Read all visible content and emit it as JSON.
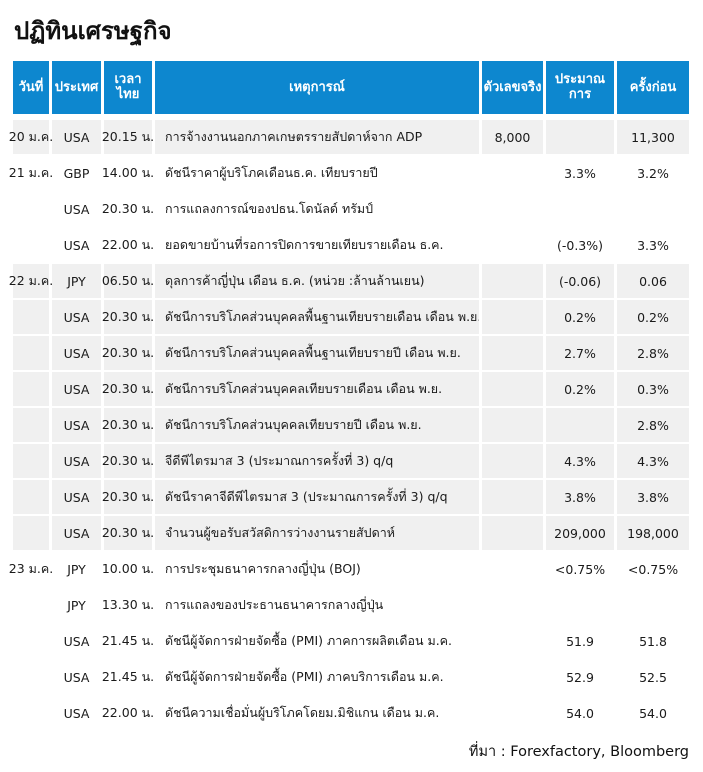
{
  "page_title": "ปฏิทินเศรษฐกิจ",
  "source_note": "ที่มา : Forexfactory, Bloomberg",
  "colors": {
    "header_bg": "#0d87cf",
    "header_text": "#ffffff",
    "row_alt_bg": "#f0f0f0",
    "row_bg": "#ffffff",
    "text": "#1a1a1a"
  },
  "table": {
    "columns": [
      "วันที่",
      "ประเทศ",
      "เวลาไทย",
      "เหตุการณ์",
      "ตัวเลขจริง",
      "ประมาณการ",
      "ครั้งก่อน"
    ],
    "rows": [
      {
        "date": "20 ม.ค.",
        "country": "USA",
        "time": "20.15 น.",
        "event": "การจ้างงานนอกภาคเกษตรรายสัปดาห์จาก ADP",
        "actual": "8,000",
        "estimate": "",
        "previous": "11,300",
        "shaded": true
      },
      {
        "date": "21 ม.ค.",
        "country": "GBP",
        "time": "14.00 น.",
        "event": "ดัชนีราคาผู้บริโภคเดือนธ.ค. เทียบรายปี",
        "actual": "",
        "estimate": "3.3%",
        "previous": "3.2%",
        "shaded": false
      },
      {
        "date": "",
        "country": "USA",
        "time": "20.30 น.",
        "event": "การแถลงการณ์ของปธน.โดนัลด์ ทรัมป์",
        "actual": "",
        "estimate": "",
        "previous": "",
        "shaded": false
      },
      {
        "date": "",
        "country": "USA",
        "time": "22.00 น.",
        "event": "ยอดขายบ้านที่รอการปิดการขายเทียบรายเดือน ธ.ค.",
        "actual": "",
        "estimate": "(-0.3%)",
        "previous": "3.3%",
        "shaded": false
      },
      {
        "date": "22 ม.ค.",
        "country": "JPY",
        "time": "06.50 น.",
        "event": "ดุลการค้าญี่ปุ่น เดือน ธ.ค. (หน่วย :ล้านล้านเยน)",
        "actual": "",
        "estimate": "(-0.06)",
        "previous": "0.06",
        "shaded": true
      },
      {
        "date": "",
        "country": "USA",
        "time": "20.30 น.",
        "event": "ดัชนีการบริโภคส่วนบุคคลพื้นฐานเทียบรายเดือน เดือน พ.ย.",
        "actual": "",
        "estimate": "0.2%",
        "previous": "0.2%",
        "shaded": true
      },
      {
        "date": "",
        "country": "USA",
        "time": "20.30 น.",
        "event": "ดัชนีการบริโภคส่วนบุคคลพื้นฐานเทียบรายปี เดือน พ.ย.",
        "actual": "",
        "estimate": "2.7%",
        "previous": "2.8%",
        "shaded": true
      },
      {
        "date": "",
        "country": "USA",
        "time": "20.30 น.",
        "event": "ดัชนีการบริโภคส่วนบุคคลเทียบรายเดือน เดือน พ.ย.",
        "actual": "",
        "estimate": "0.2%",
        "previous": "0.3%",
        "shaded": true
      },
      {
        "date": "",
        "country": "USA",
        "time": "20.30 น.",
        "event": "ดัชนีการบริโภคส่วนบุคคลเทียบรายปี เดือน พ.ย.",
        "actual": "",
        "estimate": "",
        "previous": "2.8%",
        "shaded": true
      },
      {
        "date": "",
        "country": "USA",
        "time": "20.30 น.",
        "event": "จีดีพีไตรมาส 3 (ประมาณการครั้งที่ 3) q/q",
        "actual": "",
        "estimate": "4.3%",
        "previous": "4.3%",
        "shaded": true
      },
      {
        "date": "",
        "country": "USA",
        "time": "20.30 น.",
        "event": "ดัชนีราคาจีดีพีไตรมาส 3 (ประมาณการครั้งที่ 3) q/q",
        "actual": "",
        "estimate": "3.8%",
        "previous": "3.8%",
        "shaded": true
      },
      {
        "date": "",
        "country": "USA",
        "time": "20.30 น.",
        "event": "จำนวนผู้ขอรับสวัสดิการว่างงานรายสัปดาห์",
        "actual": "",
        "estimate": "209,000",
        "previous": "198,000",
        "shaded": true
      },
      {
        "date": "23 ม.ค.",
        "country": "JPY",
        "time": "10.00 น.",
        "event": "การประชุมธนาคารกลางญี่ปุ่น (BOJ)",
        "actual": "",
        "estimate": "<0.75%",
        "previous": "<0.75%",
        "shaded": false
      },
      {
        "date": "",
        "country": "JPY",
        "time": "13.30 น.",
        "event": "การแถลงของประธานธนาคารกลางญี่ปุ่น",
        "actual": "",
        "estimate": "",
        "previous": "",
        "shaded": false
      },
      {
        "date": "",
        "country": "USA",
        "time": "21.45 น.",
        "event": "ดัชนีผู้จัดการฝ่ายจัดซื้อ (PMI) ภาคการผลิตเดือน ม.ค.",
        "actual": "",
        "estimate": "51.9",
        "previous": "51.8",
        "shaded": false
      },
      {
        "date": "",
        "country": "USA",
        "time": "21.45 น.",
        "event": "ดัชนีผู้จัดการฝ่ายจัดซื้อ (PMI) ภาคบริการเดือน ม.ค.",
        "actual": "",
        "estimate": "52.9",
        "previous": "52.5",
        "shaded": false
      },
      {
        "date": "",
        "country": "USA",
        "time": "22.00 น.",
        "event": "ดัชนีความเชื่อมั่นผู้บริโภคโดยม.มิชิแกน เดือน ม.ค.",
        "actual": "",
        "estimate": "54.0",
        "previous": "54.0",
        "shaded": false
      }
    ]
  }
}
